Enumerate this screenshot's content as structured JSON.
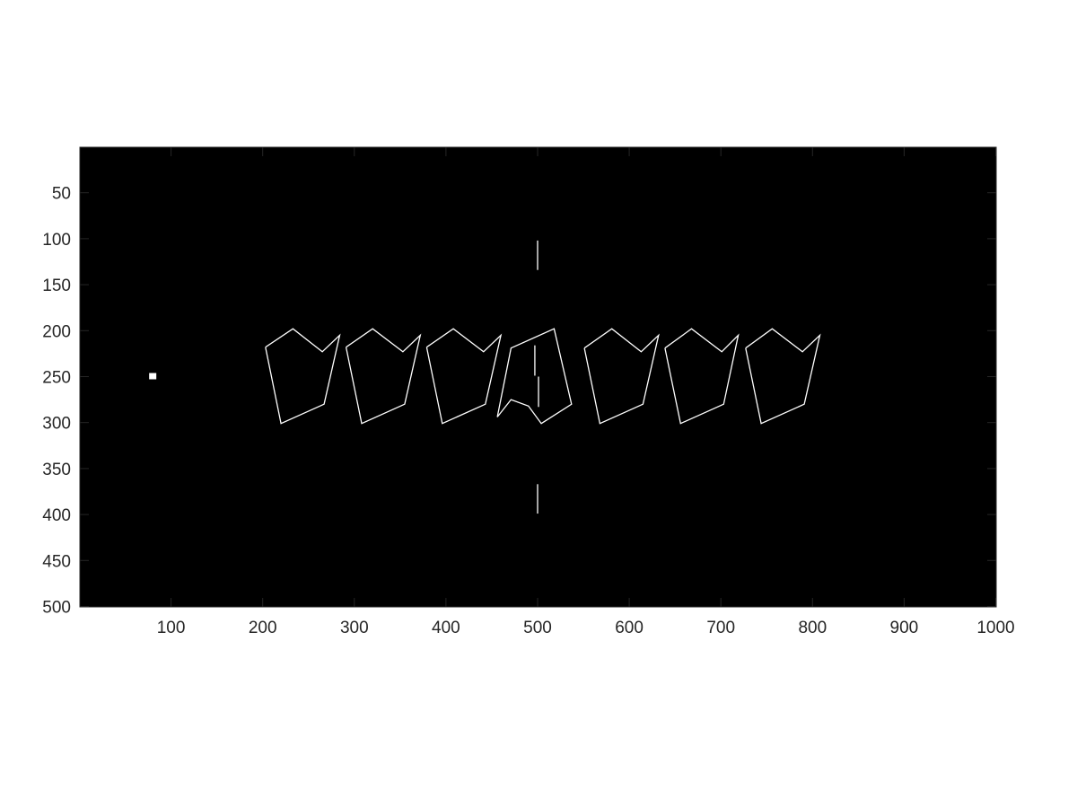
{
  "chart_data": {
    "type": "image",
    "background_color": "#000000",
    "stroke_color": "#ffffff",
    "tick_color": "#262626",
    "xlim": [
      0.5,
      1000.5
    ],
    "ylim": [
      0.5,
      500.5
    ],
    "y_direction": "reverse",
    "xticks": [
      100,
      200,
      300,
      400,
      500,
      600,
      700,
      800,
      900,
      1000
    ],
    "yticks": [
      50,
      100,
      150,
      200,
      250,
      300,
      350,
      400,
      450,
      500
    ],
    "grid": false,
    "point_marker": [
      80,
      250
    ],
    "polygons": [
      [
        [
          203,
          218
        ],
        [
          233,
          198
        ],
        [
          265,
          223
        ],
        [
          284,
          205
        ],
        [
          267,
          280
        ],
        [
          220,
          301
        ],
        [
          203,
          218
        ]
      ],
      [
        [
          291,
          218
        ],
        [
          320,
          198
        ],
        [
          353,
          223
        ],
        [
          372,
          205
        ],
        [
          355,
          280
        ],
        [
          308,
          301
        ],
        [
          291,
          218
        ]
      ],
      [
        [
          379,
          218
        ],
        [
          408,
          198
        ],
        [
          441,
          223
        ],
        [
          460,
          205
        ],
        [
          443,
          280
        ],
        [
          396,
          301
        ],
        [
          379,
          218
        ]
      ],
      [
        [
          456,
          294
        ],
        [
          471,
          275
        ],
        [
          490,
          282
        ],
        [
          504,
          301
        ],
        [
          537,
          280
        ],
        [
          518,
          198
        ],
        [
          471,
          219
        ],
        [
          456,
          294
        ]
      ],
      [
        [
          551,
          219
        ],
        [
          581,
          198
        ],
        [
          613,
          223
        ],
        [
          632,
          205
        ],
        [
          615,
          280
        ],
        [
          568,
          301
        ],
        [
          551,
          219
        ]
      ],
      [
        [
          639,
          219
        ],
        [
          668,
          198
        ],
        [
          701,
          223
        ],
        [
          719,
          205
        ],
        [
          703,
          280
        ],
        [
          656,
          301
        ],
        [
          639,
          219
        ]
      ],
      [
        [
          727,
          219
        ],
        [
          756,
          198
        ],
        [
          789,
          223
        ],
        [
          808,
          205
        ],
        [
          791,
          280
        ],
        [
          744,
          301
        ],
        [
          727,
          219
        ]
      ]
    ],
    "segments": [
      [
        [
          500,
          102
        ],
        [
          500,
          134
        ]
      ],
      [
        [
          497,
          216
        ],
        [
          497,
          249
        ]
      ],
      [
        [
          501,
          250
        ],
        [
          501,
          283
        ]
      ],
      [
        [
          500,
          367
        ],
        [
          500,
          399
        ]
      ]
    ]
  }
}
